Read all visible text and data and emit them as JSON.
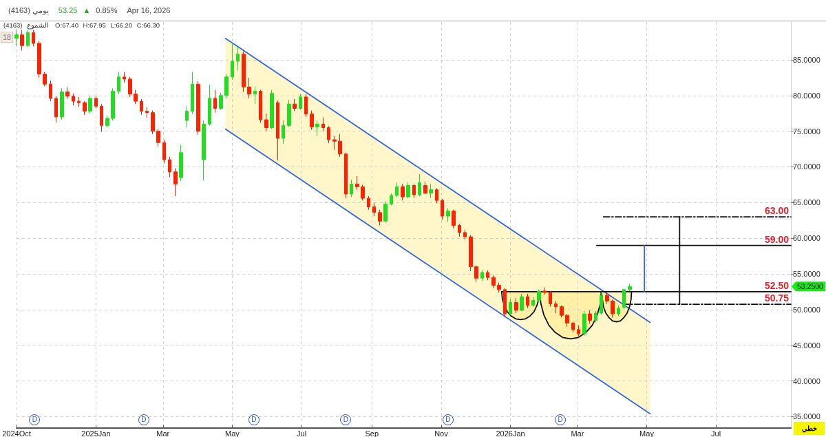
{
  "chart_data": {
    "type": "candlestick",
    "title": "(4163) يومي",
    "subtitle": "53.25 ▲ 0.85%",
    "annotations": [
      "Apr 16, 2026",
      "(4163) الشموع",
      "O:67.40 H:67.95 L:66.20 C:66.30",
      "18",
      "خطي",
      "53.2500",
      {
        "text": "63.00",
        "x": "2026-09-05",
        "y": 63
      },
      {
        "text": "59.00",
        "x": "2026-09-05",
        "y": 59
      },
      {
        "text": "52.50",
        "x": "2026-09-05",
        "y": 52.5
      },
      {
        "text": "50.75",
        "x": "2026-09-05",
        "y": 50.75
      },
      {
        "text": "D",
        "x": "2024-11-08"
      },
      {
        "text": "D",
        "x": "2025-02-12"
      },
      {
        "text": "D",
        "x": "2025-05-20"
      },
      {
        "text": "D",
        "x": "2025-08-09"
      },
      {
        "text": "D",
        "x": "2025-11-07"
      },
      {
        "text": "D",
        "x": "2026-02-14"
      }
    ],
    "xlim": [
      "2024-10-23",
      "2026-09-05"
    ],
    "xticks": [
      {
        "value": "2024-10-23",
        "label": "2024Oct"
      },
      {
        "value": "2025-01-01",
        "label": "2025Jan"
      },
      {
        "value": "2025-03-01",
        "label": "Mar"
      },
      {
        "value": "2025-05-01",
        "label": "May"
      },
      {
        "value": "2025-07-01",
        "label": "Jul"
      },
      {
        "value": "2025-09-01",
        "label": "Sep"
      },
      {
        "value": "2025-11-01",
        "label": "Nov"
      },
      {
        "value": "2026-01-01",
        "label": "2026Jan"
      },
      {
        "value": "2026-03-01",
        "label": "Mar"
      },
      {
        "value": "2026-05-01",
        "label": "May"
      },
      {
        "value": "2026-07-01",
        "label": "Jul"
      }
    ],
    "ylim": [
      33.4,
      90.3
    ],
    "yticks": [
      {
        "value": 35,
        "label": "35.0000"
      },
      {
        "value": 40,
        "label": "40.0000"
      },
      {
        "value": 45,
        "label": "45.0000"
      },
      {
        "value": 50,
        "label": "50.0000"
      },
      {
        "value": 55,
        "label": "55.0000"
      },
      {
        "value": 60,
        "label": "60.0000"
      },
      {
        "value": 65,
        "label": "65.0000"
      },
      {
        "value": 70,
        "label": "70.0000"
      },
      {
        "value": 75,
        "label": "75.0000"
      },
      {
        "value": 80,
        "label": "80.0000"
      },
      {
        "value": 85,
        "label": "85.0000"
      }
    ],
    "grid": true,
    "marker": "none",
    "series": [
      {
        "x": [
          "2024-10-23",
          "2024-10-28",
          "2024-11-02",
          "2024-11-07",
          "2024-11-12",
          "2024-11-17",
          "2024-11-22",
          "2024-11-27",
          "2024-12-02",
          "2024-12-07",
          "2024-12-12",
          "2024-12-17",
          "2024-12-22",
          "2024-12-27",
          "2025-01-01",
          "2025-01-06",
          "2025-01-11",
          "2025-01-16",
          "2025-01-21",
          "2025-01-26",
          "2025-01-31",
          "2025-02-05",
          "2025-02-10",
          "2025-02-15",
          "2025-02-20",
          "2025-02-25",
          "2025-03-02",
          "2025-03-07",
          "2025-03-12",
          "2025-03-17",
          "2025-03-22",
          "2025-03-27",
          "2025-04-01",
          "2025-04-06",
          "2025-04-11",
          "2025-04-16",
          "2025-04-21",
          "2025-04-26",
          "2025-05-01",
          "2025-05-06",
          "2025-05-11",
          "2025-05-16",
          "2025-05-21",
          "2025-05-26",
          "2025-05-31",
          "2025-06-05",
          "2025-06-10",
          "2025-06-15",
          "2025-06-20",
          "2025-06-25",
          "2025-06-30",
          "2025-07-05",
          "2025-07-10",
          "2025-07-15",
          "2025-07-20",
          "2025-07-25",
          "2025-07-30",
          "2025-08-04",
          "2025-08-09",
          "2025-08-14",
          "2025-08-19",
          "2025-08-24",
          "2025-08-29",
          "2025-09-03",
          "2025-09-08",
          "2025-09-13",
          "2025-09-18",
          "2025-09-23",
          "2025-09-28",
          "2025-10-03",
          "2025-10-08",
          "2025-10-13",
          "2025-10-18",
          "2025-10-23",
          "2025-10-28",
          "2025-11-02",
          "2025-11-07",
          "2025-11-12",
          "2025-11-17",
          "2025-11-22",
          "2025-11-27",
          "2025-12-02",
          "2025-12-07",
          "2025-12-12",
          "2025-12-17",
          "2025-12-22",
          "2025-12-27",
          "2026-01-01",
          "2026-01-06",
          "2026-01-11",
          "2026-01-16",
          "2026-01-21",
          "2026-01-26",
          "2026-01-31",
          "2026-02-05",
          "2026-02-10",
          "2026-02-15",
          "2026-02-20",
          "2026-02-25",
          "2026-03-02",
          "2026-03-07",
          "2026-03-12",
          "2026-03-17",
          "2026-03-22",
          "2026-03-27",
          "2026-04-01",
          "2026-04-06",
          "2026-04-11",
          "2026-04-16"
        ],
        "ohlc": [
          [
            88,
            89.2,
            87,
            88.5
          ],
          [
            88.5,
            89.2,
            86.3,
            87
          ],
          [
            87,
            89.2,
            86.8,
            88.8
          ],
          [
            88.8,
            89.2,
            86.9,
            87.3
          ],
          [
            87.3,
            87.6,
            82.5,
            83
          ],
          [
            83,
            83.3,
            81.3,
            81.6
          ],
          [
            81.6,
            82.1,
            79.2,
            79.6
          ],
          [
            79.6,
            79.9,
            76.2,
            77
          ],
          [
            77,
            81,
            76.6,
            80.5
          ],
          [
            80.5,
            81.2,
            79.5,
            79.9
          ],
          [
            79.9,
            80.3,
            78.6,
            79.2
          ],
          [
            79.2,
            79.8,
            78.4,
            79
          ],
          [
            79,
            79.2,
            77.3,
            77.8
          ],
          [
            77.8,
            80,
            77.5,
            79.6
          ],
          [
            79.6,
            79.9,
            78.2,
            78.5
          ],
          [
            78.5,
            78.8,
            74.9,
            75.8
          ],
          [
            75.8,
            77.2,
            75.5,
            76.8
          ],
          [
            76.8,
            81,
            76.5,
            80.6
          ],
          [
            80.6,
            83.3,
            80.2,
            82.6
          ],
          [
            82.6,
            83.3,
            81.8,
            82.3
          ],
          [
            82.3,
            82.6,
            79.8,
            80.2
          ],
          [
            80.2,
            80.8,
            78.8,
            79.2
          ],
          [
            79.2,
            79.5,
            77.3,
            77.8
          ],
          [
            77.8,
            78.4,
            76.9,
            77.6
          ],
          [
            77.6,
            77.9,
            74.6,
            75
          ],
          [
            75,
            75.3,
            72.8,
            73.4
          ],
          [
            73.4,
            73.8,
            70.5,
            71
          ],
          [
            71,
            71.4,
            68.6,
            69.3
          ],
          [
            69.3,
            69.8,
            65.9,
            67.6
          ],
          [
            68.5,
            73.1,
            68,
            72
          ],
          [
            76.5,
            78.5,
            75.5,
            77.8
          ],
          [
            77.8,
            83.3,
            77.4,
            81.6
          ],
          [
            81.6,
            82,
            74.5,
            75
          ],
          [
            71,
            76.5,
            68.1,
            76
          ],
          [
            76,
            81.5,
            75.8,
            79.6
          ],
          [
            79.6,
            80.8,
            77.6,
            78.2
          ],
          [
            78.2,
            80.4,
            78,
            80
          ],
          [
            80,
            83,
            79.6,
            82.6
          ],
          [
            82.6,
            87.4,
            82.3,
            84.8
          ],
          [
            84.8,
            86.8,
            83.5,
            85.8
          ],
          [
            85.8,
            86.2,
            80.5,
            81.2
          ],
          [
            81.2,
            82.5,
            79.6,
            80.2
          ],
          [
            80.2,
            81.3,
            78.8,
            80.6
          ],
          [
            80.6,
            80.8,
            76.2,
            76.6
          ],
          [
            76.6,
            77.5,
            75,
            75.5
          ],
          [
            75.5,
            80.8,
            75.3,
            80.3
          ],
          [
            79,
            79.3,
            70.9,
            74
          ],
          [
            74,
            76.5,
            73.2,
            75.8
          ],
          [
            75.8,
            79.4,
            75.6,
            78.8
          ],
          [
            78.8,
            79.5,
            77.8,
            78.2
          ],
          [
            78.2,
            80.2,
            78,
            79.8
          ],
          [
            79.8,
            80.2,
            77,
            77.4
          ],
          [
            77.4,
            77.9,
            75.2,
            75.6
          ],
          [
            75.6,
            76.5,
            74.3,
            76
          ],
          [
            76,
            76.9,
            75,
            75.5
          ],
          [
            75.5,
            75.7,
            73.3,
            73.8
          ],
          [
            73.8,
            74.3,
            72.4,
            73.6
          ],
          [
            73.6,
            74.6,
            71.4,
            71.8
          ],
          [
            71.8,
            72,
            65.6,
            66.2
          ],
          [
            66.2,
            68.2,
            65.8,
            67.6
          ],
          [
            67.6,
            68.7,
            66.8,
            67.2
          ],
          [
            67.2,
            67.5,
            65.3,
            65.6
          ],
          [
            65.6,
            65.9,
            64,
            64.4
          ],
          [
            64.4,
            65,
            63.1,
            63.6
          ],
          [
            63.6,
            64,
            61.8,
            62.4
          ],
          [
            62.4,
            65.2,
            62.2,
            64.8
          ],
          [
            64.8,
            66.3,
            64.6,
            66
          ],
          [
            66,
            67.8,
            65.8,
            67.2
          ],
          [
            67.2,
            67.6,
            65.3,
            65.8
          ],
          [
            65.8,
            67.8,
            65.6,
            67.4
          ],
          [
            67.4,
            67.6,
            65.6,
            66.1
          ],
          [
            66.1,
            69,
            65.9,
            67.8
          ],
          [
            67.4,
            67.95,
            66.2,
            66.3
          ],
          [
            66.3,
            67.6,
            65.6,
            66.8
          ],
          [
            66.8,
            67,
            64.9,
            65.3
          ],
          [
            65.3,
            65.5,
            62.6,
            63.1
          ],
          [
            63.1,
            64.2,
            62.3,
            63.8
          ],
          [
            63.8,
            64,
            61.4,
            61.8
          ],
          [
            61.8,
            62,
            60.2,
            60.8
          ],
          [
            60.8,
            61.2,
            59.8,
            60.2
          ],
          [
            60.2,
            60.4,
            55.4,
            56
          ],
          [
            56,
            56.2,
            53.9,
            54.4
          ],
          [
            54.4,
            55.6,
            54,
            55.2
          ],
          [
            55.2,
            55.5,
            54.1,
            54.5
          ],
          [
            54.5,
            54.8,
            53,
            53.4
          ],
          [
            53.4,
            53.8,
            52.4,
            52.8
          ],
          [
            52.8,
            53,
            48.9,
            49.4
          ],
          [
            49.4,
            51.5,
            49.2,
            51
          ],
          [
            51,
            51.6,
            49.5,
            49.9
          ],
          [
            49.9,
            52.2,
            49.8,
            51.8
          ],
          [
            51.8,
            52.2,
            50.2,
            50.6
          ],
          [
            50.6,
            51.8,
            50.4,
            51.3
          ],
          [
            51.3,
            52.8,
            51,
            52.6
          ],
          [
            52.6,
            53.1,
            52.1,
            52.4
          ],
          [
            52.4,
            52.6,
            50.4,
            50.8
          ],
          [
            50.8,
            51.2,
            49.5,
            50.4
          ],
          [
            50.4,
            50.6,
            48.9,
            49.2
          ],
          [
            49.2,
            49.4,
            47.6,
            48.1
          ],
          [
            48.1,
            48.3,
            46.8,
            47.2
          ],
          [
            47.2,
            47.8,
            46.1,
            46.6
          ],
          [
            46.6,
            49.8,
            46.3,
            49.4
          ],
          [
            49.4,
            49.9,
            48,
            48.5
          ],
          [
            48.5,
            49.8,
            48.2,
            49.5
          ],
          [
            49.5,
            52.5,
            49.3,
            52
          ],
          [
            52,
            52.4,
            50.8,
            51.2
          ],
          [
            51.2,
            51.4,
            48.9,
            49.4
          ],
          [
            49.4,
            50.6,
            49.1,
            50.2
          ],
          [
            50.3,
            52.9,
            50.1,
            52.8
          ],
          [
            52.8,
            53.6,
            52.6,
            53.25
          ]
        ],
        "colors": [
          "#22dd22",
          "#ff2200",
          "#22dd22",
          "#ff2200",
          "#ff2200",
          "#ff2200",
          "#ff2200",
          "#ff2200",
          "#22dd22",
          "#ff2200",
          "#ff2200",
          "#ff2200",
          "#ff2200",
          "#22dd22",
          "#ff2200",
          "#ff2200",
          "#22dd22",
          "#22dd22",
          "#22dd22",
          "#ff2200",
          "#ff2200",
          "#ff2200",
          "#ff2200",
          "#ff2200",
          "#ff2200",
          "#ff2200",
          "#ff2200",
          "#ff2200",
          "#ff2200",
          "#22dd22",
          "#22dd22",
          "#22dd22",
          "#ff2200",
          "#22dd22",
          "#22dd22",
          "#ff2200",
          "#22dd22",
          "#22dd22",
          "#22dd22",
          "#22dd22",
          "#ff2200",
          "#ff2200",
          "#22dd22",
          "#ff2200",
          "#ff2200",
          "#22dd22",
          "#ff2200",
          "#22dd22",
          "#22dd22",
          "#ff2200",
          "#22dd22",
          "#ff2200",
          "#ff2200",
          "#22dd22",
          "#ff2200",
          "#ff2200",
          "#ff2200",
          "#ff2200",
          "#ff2200",
          "#22dd22",
          "#ff2200",
          "#ff2200",
          "#ff2200",
          "#ff2200",
          "#ff2200",
          "#22dd22",
          "#22dd22",
          "#22dd22",
          "#ff2200",
          "#22dd22",
          "#ff2200",
          "#22dd22",
          "#ff2200",
          "#22dd22",
          "#ff2200",
          "#ff2200",
          "#22dd22",
          "#ff2200",
          "#ff2200",
          "#ff2200",
          "#ff2200",
          "#ff2200",
          "#22dd22",
          "#ff2200",
          "#ff2200",
          "#ff2200",
          "#ff2200",
          "#22dd22",
          "#ff2200",
          "#22dd22",
          "#ff2200",
          "#22dd22",
          "#22dd22",
          "#ff2200",
          "#ff2200",
          "#ff2200",
          "#ff2200",
          "#ff2200",
          "#ff2200",
          "#ff2200",
          "#22dd22",
          "#ff2200",
          "#22dd22",
          "#22dd22",
          "#ff2200",
          "#ff2200",
          "#22dd22",
          "#22dd22",
          "#22dd22"
        ]
      },
      {
        "type": "line",
        "color": "#3366e0",
        "x": [
          "2025-04-25",
          "2026-05-04"
        ],
        "values": [
          88,
          48.2
        ]
      },
      {
        "type": "line",
        "color": "#3366e0",
        "x": [
          "2025-04-25",
          "2026-05-04"
        ],
        "values": [
          75.3,
          35.4
        ]
      },
      {
        "type": "line",
        "color": "#111111",
        "x": [
          "2025-12-24T07:00",
          "2025-12-24T21:00",
          "2025-12-26T13:00",
          "2025-12-29T05:00",
          "2026-01-01T15:00",
          "2026-01-05T16:00",
          "2026-01-09T23:00",
          "2026-01-14T06:00",
          "2026-01-18T07:00",
          "2026-01-21T18:00",
          "2026-01-24T09:00",
          "2026-01-26T01:00",
          "2026-01-26T15:00"
        ],
        "values": [
          52.5,
          51.5,
          50.6,
          49.7,
          49.1,
          48.7,
          48.6,
          48.7,
          49.1,
          49.7,
          50.6,
          51.5,
          52.5
        ]
      },
      {
        "type": "line",
        "color": "#111111",
        "x": [
          "2026-01-26T15:00",
          "2026-01-27T20:00",
          "2026-01-30T13:00",
          "2026-02-03T20:00",
          "2026-02-09T10:00",
          "2026-02-15T23:00",
          "2026-02-22T23:00",
          "2026-03-01T23:00",
          "2026-03-08T12:00",
          "2026-03-14T02:00",
          "2026-03-18T09:00",
          "2026-03-21T02:00",
          "2026-03-22"
        ],
        "values": [
          52.5,
          50.8,
          49.2,
          47.8,
          46.8,
          46.1,
          45.9,
          46.1,
          46.8,
          47.8,
          49.2,
          50.8,
          52.5
        ]
      },
      {
        "type": "line",
        "color": "#111111",
        "x": [
          "2026-03-22",
          "2026-03-23T22:00",
          "2026-03-26",
          "2026-03-28T18:00",
          "2026-03-31T23:00",
          "2026-04-04T09:00",
          "2026-04-07T19:00",
          "2026-04-11",
          "2026-04-13T18:00",
          "2026-04-15T21:00",
          "2026-04-17T05:00",
          "2026-04-17T15:00"
        ],
        "values": [
          52.5,
          50.4,
          49.5,
          48.9,
          48.4,
          48.3,
          48.4,
          48.9,
          49.5,
          50.4,
          51.4,
          52.5
        ]
      },
      {
        "type": "line",
        "color": "#111111",
        "x": [
          "2025-12-24T07:00",
          "2026-09-05"
        ],
        "values": [
          52.5,
          52.5
        ]
      },
      {
        "type": "line",
        "color": "#111111",
        "x": [
          "2026-03-18",
          "2026-09-05"
        ],
        "values": [
          59,
          59
        ]
      },
      {
        "type": "line",
        "color": "#111111",
        "x": [
          "2026-03-24",
          "2026-09-05"
        ],
        "values": [
          63,
          63
        ],
        "line_style": "dashed"
      },
      {
        "type": "line",
        "color": "#111111",
        "x": [
          "2026-04-10",
          "2026-09-05"
        ],
        "values": [
          50.75,
          50.75
        ],
        "line_style": "dashed"
      },
      {
        "type": "line",
        "color": "#3366e0",
        "x": [
          "2026-04-29",
          "2026-04-29"
        ],
        "values": [
          52.5,
          59
        ]
      },
      {
        "type": "line",
        "color": "#111111",
        "x": [
          "2026-05-30",
          "2026-05-30"
        ],
        "values": [
          50.75,
          63
        ]
      }
    ]
  }
}
